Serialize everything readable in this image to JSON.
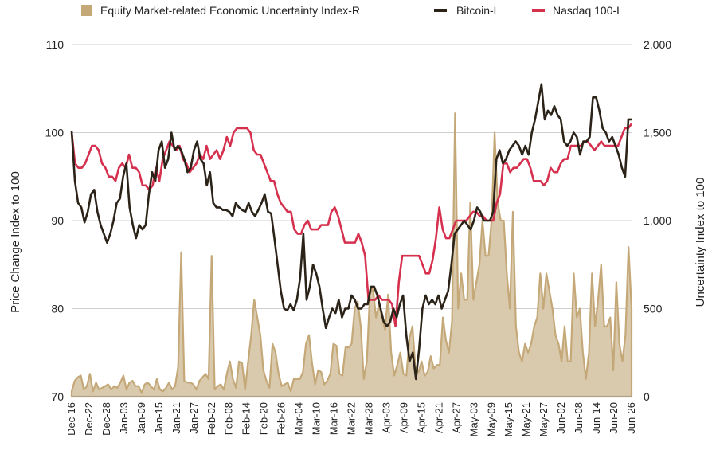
{
  "chart_data": {
    "type": "line+area",
    "title": "",
    "legend": {
      "position": "top",
      "entries": [
        {
          "name": "Equity Market-related Economic Uncertainty Index-R",
          "symbol": "area",
          "color": "#c4a878"
        },
        {
          "name": "Bitcoin-L",
          "symbol": "line",
          "color": "#2b2318"
        },
        {
          "name": "Nasdaq 100-L",
          "symbol": "line",
          "color": "#d6304f"
        }
      ]
    },
    "ylabel_left": "Price Change Index to 100",
    "ylabel_right": "Uncertainty Index to 100",
    "ylim_left": [
      70,
      110
    ],
    "ylim_right": [
      0,
      2000
    ],
    "yticks_left": [
      "70",
      "80",
      "90",
      "100",
      "110"
    ],
    "yticks_right": [
      "0",
      "500",
      "1,000",
      "1,500",
      "2,000"
    ],
    "grid": true,
    "xtick_labels": [
      "Dec-16",
      "Dec-22",
      "Dec-28",
      "Jan-03",
      "Jan-09",
      "Jan-15",
      "Jan-21",
      "Jan-27",
      "Feb-02",
      "Feb-08",
      "Feb-14",
      "Feb-20",
      "Feb-26",
      "Mar-04",
      "Mar-10",
      "Mar-16",
      "Mar-22",
      "Mar-28",
      "Apr-03",
      "Apr-09",
      "Apr-15",
      "Apr-21",
      "Apr-27",
      "May-03",
      "May-09",
      "May-15",
      "May-21",
      "May-27",
      "Jun-02",
      "Jun-08",
      "Jun-14",
      "Jun-20",
      "Jun-26"
    ],
    "series": [
      {
        "name": "Bitcoin-L",
        "axis": "left",
        "color": "#2b2318",
        "values": [
          100.2,
          94.5,
          92,
          91.5,
          89.8,
          91,
          93,
          93.5,
          91,
          89.5,
          88.5,
          87.5,
          88.5,
          90,
          92,
          92.5,
          95,
          96.5,
          91.5,
          89.5,
          88,
          89.5,
          89,
          89.5,
          93,
          95.5,
          94.5,
          98,
          99,
          96,
          97,
          100,
          98,
          98.5,
          98,
          97,
          95.5,
          96,
          98,
          99,
          97,
          96.5,
          94,
          95.5,
          92,
          91.5,
          91.5,
          91.2,
          91.2,
          91,
          90.5,
          92,
          91.5,
          91.2,
          91,
          92,
          91,
          90.5,
          91.2,
          92,
          93,
          91,
          90.8,
          88,
          85,
          82,
          80,
          79.8,
          80.5,
          79.8,
          81,
          83.5,
          88.5,
          81,
          82.5,
          85,
          84,
          82.5,
          80,
          77.8,
          79,
          80,
          79.5,
          81,
          79,
          80,
          80,
          81.5,
          81,
          80,
          80,
          80.5,
          80.5,
          82.5,
          82.5,
          81.5,
          80,
          78.5,
          78,
          78.5,
          80,
          79,
          80.5,
          81.5,
          77,
          74,
          75,
          72,
          75.5,
          80,
          81.5,
          80.5,
          81,
          80.5,
          81.5,
          80,
          81,
          82,
          85,
          88.5,
          89,
          89.5,
          90,
          89.5,
          89,
          90,
          91.5,
          91,
          90,
          90,
          90,
          91,
          97,
          98,
          96.5,
          97,
          98,
          98.5,
          99,
          98.5,
          97.5,
          98.5,
          97.5,
          100,
          101.5,
          103.5,
          105.5,
          101.5,
          102.5,
          102,
          103,
          102,
          101.5,
          99,
          98.5,
          99,
          100,
          99.5,
          97.5,
          99,
          99,
          99.5,
          104,
          104,
          102.5,
          100.5,
          100,
          99,
          99.5,
          98.5,
          97.5,
          96,
          95,
          101.5,
          101.5
        ]
      },
      {
        "name": "Nasdaq 100-L",
        "axis": "left",
        "color": "#d6304f",
        "values": [
          100,
          96.5,
          96,
          96,
          96.5,
          97.5,
          98.5,
          98.5,
          98,
          96.5,
          96,
          95,
          95,
          94.5,
          96,
          96.5,
          96,
          97.5,
          96,
          96,
          95.5,
          94,
          94,
          93.5,
          94,
          96,
          94.5,
          97,
          98,
          99,
          98.5,
          98,
          98.5,
          97,
          96.5,
          95.5,
          96,
          96.5,
          97.5,
          97,
          98.5,
          97,
          97.5,
          98,
          97,
          98,
          99.5,
          98.5,
          100,
          100.5,
          100.5,
          100.5,
          100.5,
          100,
          98,
          97.5,
          97.5,
          96.5,
          95.5,
          94.5,
          94.5,
          93,
          92,
          91.5,
          91,
          91,
          89,
          88.5,
          88.5,
          89.5,
          90,
          89,
          89,
          89,
          89.5,
          89.5,
          89.5,
          91,
          91.5,
          90.5,
          89,
          87.5,
          87.5,
          87.5,
          87.5,
          88.5,
          87.5,
          86,
          81,
          81,
          81,
          81.5,
          81,
          81,
          81,
          80.5,
          78,
          83,
          86,
          86,
          86,
          86,
          86,
          86,
          85,
          84,
          84,
          85.5,
          88,
          91.5,
          89,
          88,
          88,
          89,
          90,
          90,
          90,
          90,
          90.5,
          91,
          91,
          90.5,
          90.5,
          90,
          90,
          90,
          92,
          93,
          96.5,
          96.5,
          95.5,
          96,
          96,
          96.5,
          97,
          97,
          96,
          94.5,
          94.5,
          94.5,
          94,
          94.5,
          96,
          95.5,
          95.5,
          96.5,
          97,
          97,
          98.5,
          98.5,
          98.5,
          98.5,
          99,
          99,
          98.5,
          98,
          98.5,
          99,
          98.5,
          98.5,
          98.5,
          98.5,
          98.5,
          99.5,
          100.5,
          100.5,
          101
        ]
      },
      {
        "name": "Equity Market-related Economic Uncertainty Index-R",
        "axis": "right",
        "color": "#c4a878",
        "values": [
          30,
          90,
          110,
          120,
          40,
          60,
          130,
          30,
          80,
          40,
          50,
          60,
          70,
          40,
          60,
          50,
          80,
          120,
          40,
          80,
          90,
          60,
          60,
          20,
          70,
          80,
          60,
          40,
          100,
          40,
          30,
          50,
          80,
          40,
          60,
          170,
          820,
          90,
          80,
          80,
          70,
          40,
          90,
          110,
          130,
          100,
          800,
          40,
          60,
          70,
          40,
          130,
          200,
          100,
          50,
          200,
          190,
          40,
          200,
          350,
          550,
          450,
          350,
          150,
          90,
          50,
          300,
          250,
          130,
          60,
          70,
          80,
          30,
          100,
          100,
          100,
          140,
          300,
          350,
          190,
          70,
          150,
          140,
          70,
          90,
          130,
          300,
          290,
          130,
          120,
          280,
          280,
          300,
          500,
          540,
          400,
          100,
          200,
          580,
          620,
          450,
          520,
          450,
          380,
          580,
          250,
          120,
          180,
          250,
          130,
          120,
          330,
          400,
          150,
          140,
          200,
          120,
          140,
          230,
          160,
          180,
          180,
          450,
          320,
          250,
          430,
          1610,
          500,
          700,
          550,
          550,
          1100,
          550,
          650,
          750,
          1000,
          800,
          800,
          1000,
          1500,
          1100,
          1000,
          1000,
          700,
          500,
          1050,
          400,
          250,
          200,
          300,
          250,
          300,
          400,
          450,
          700,
          500,
          700,
          600,
          500,
          350,
          300,
          200,
          400,
          200,
          200,
          700,
          450,
          500,
          250,
          100,
          250,
          700,
          400,
          550,
          750,
          400,
          400,
          450,
          150,
          650,
          300,
          200,
          350,
          850,
          500
        ]
      }
    ]
  }
}
